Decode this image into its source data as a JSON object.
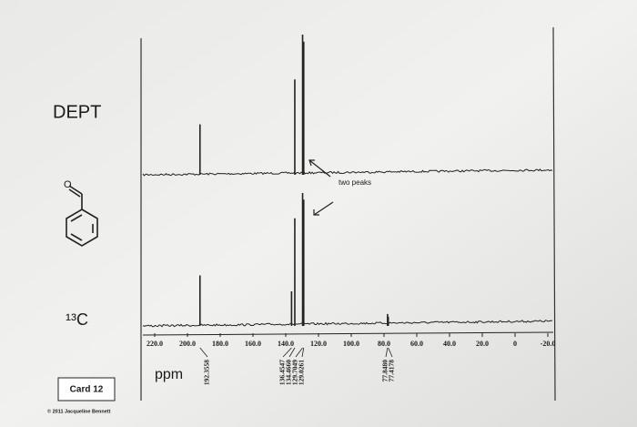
{
  "chart_data": {
    "type": "spectrum",
    "xlabel": "ppm",
    "xlim": [
      220,
      -20
    ],
    "xticks": [
      {
        "value": 220,
        "label": "220.0"
      },
      {
        "value": 200,
        "label": "200.0"
      },
      {
        "value": 180,
        "label": "180.0"
      },
      {
        "value": 160,
        "label": "160.0"
      },
      {
        "value": 140,
        "label": "140.0"
      },
      {
        "value": 120,
        "label": "120.0"
      },
      {
        "value": 100,
        "label": "100.0"
      },
      {
        "value": 80,
        "label": "80.0"
      },
      {
        "value": 60,
        "label": "60.0"
      },
      {
        "value": 40,
        "label": "40.0"
      },
      {
        "value": 20,
        "label": "20.0"
      },
      0,
      {
        "value": -20,
        "label": "-20.0"
      }
    ],
    "ylim": [
      0,
      100
    ],
    "series": [
      {
        "name": "DEPT",
        "color": "#222222",
        "x": [
          192.3558,
          134.466,
          129.7049,
          129.0261
        ],
        "values": [
          36,
          68,
          100,
          95
        ]
      },
      {
        "name": "¹³C",
        "color": "#222222",
        "x": [
          192.3558,
          136.4547,
          134.466,
          129.7049,
          129.0261,
          77.848,
          77.4178
        ],
        "x_labels": [
          "192.3558",
          "136.4547",
          "134.4660",
          "129.7049",
          "129.0261",
          "77.8480",
          "77.4178"
        ],
        "values": [
          38,
          26,
          81,
          100,
          95,
          9,
          7
        ]
      }
    ],
    "annotation": "two peaks"
  },
  "card": {
    "label": "Card 12",
    "copyright": "© 2011 Jacqueline Bennett"
  }
}
